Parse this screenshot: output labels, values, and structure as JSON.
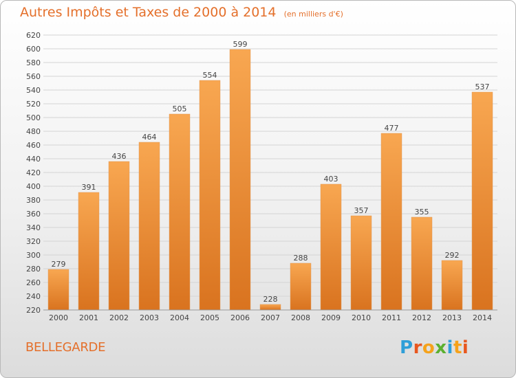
{
  "title": "Autres Impôts et Taxes de 2000 à 2014",
  "unit_note": "(en milliers d'€)",
  "commune": "BELLEGARDE",
  "logo": {
    "letters": [
      "P",
      "r",
      "o",
      "x",
      "i",
      "t",
      "i"
    ],
    "colors": [
      "#2f9fd8",
      "#e8571f",
      "#f5a21b",
      "#5bb030",
      "#2f9fd8",
      "#f5a21b",
      "#e8571f"
    ]
  },
  "colors": {
    "bar_top": "#f8a751",
    "bar_bottom": "#d9731f",
    "accent": "#e46f2a"
  },
  "chart_data": {
    "type": "bar",
    "categories": [
      "2000",
      "2001",
      "2002",
      "2003",
      "2004",
      "2005",
      "2006",
      "2007",
      "2008",
      "2009",
      "2010",
      "2011",
      "2012",
      "2013",
      "2014"
    ],
    "values": [
      279,
      391,
      436,
      464,
      505,
      554,
      599,
      228,
      288,
      403,
      357,
      477,
      355,
      292,
      537
    ],
    "ylim": [
      220,
      620
    ],
    "yticks": [
      220,
      240,
      260,
      280,
      300,
      320,
      340,
      360,
      380,
      400,
      420,
      440,
      460,
      480,
      500,
      520,
      540,
      560,
      580,
      600,
      620
    ],
    "grid": true
  }
}
